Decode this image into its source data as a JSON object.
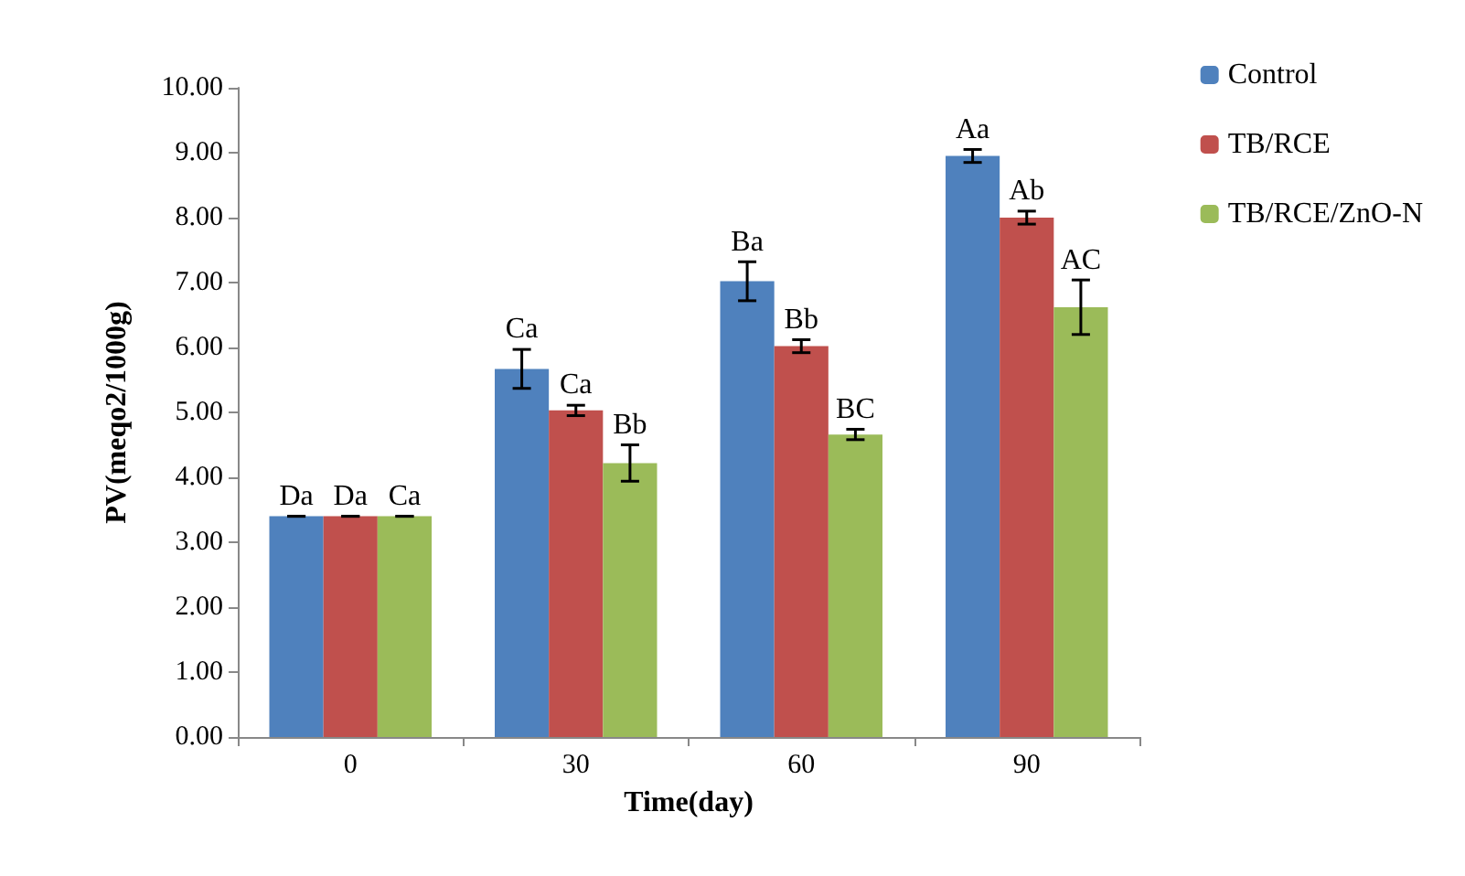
{
  "chart_data": {
    "type": "bar",
    "xlabel": "Time(day)",
    "ylabel": "PV(meqo2/1000g)",
    "categories": [
      "0",
      "30",
      "60",
      "90"
    ],
    "series": [
      {
        "name": "Control",
        "color": "#4f81bd",
        "values": [
          3.4,
          5.67,
          7.02,
          8.95
        ],
        "errors": [
          0,
          0.3,
          0.3,
          0.1
        ],
        "value_labels": [
          "Da",
          "Ca",
          "Ba",
          "Aa"
        ]
      },
      {
        "name": "TB/RCE",
        "color": "#c0504d",
        "values": [
          3.4,
          5.03,
          6.02,
          8.0
        ],
        "errors": [
          0,
          0.08,
          0.1,
          0.1
        ],
        "value_labels": [
          "Da",
          "Ca",
          "Bb",
          "Ab"
        ]
      },
      {
        "name": "TB/RCE/ZnO-N",
        "color": "#9bbb59",
        "values": [
          3.4,
          4.22,
          4.66,
          6.62
        ],
        "errors": [
          0,
          0.28,
          0.08,
          0.42
        ],
        "value_labels": [
          "Ca",
          "Bb",
          "BC",
          "AC"
        ]
      }
    ],
    "ylim": [
      0,
      10
    ],
    "yticks": [
      {
        "value": 0,
        "label": "0.00"
      },
      {
        "value": 1,
        "label": "1.00"
      },
      {
        "value": 2,
        "label": "2.00"
      },
      {
        "value": 3,
        "label": "3.00"
      },
      {
        "value": 4,
        "label": "4.00"
      },
      {
        "value": 5,
        "label": "5.00"
      },
      {
        "value": 6,
        "label": "6.00"
      },
      {
        "value": 7,
        "label": "7.00"
      },
      {
        "value": 8,
        "label": "8.00"
      },
      {
        "value": 9,
        "label": "9.00"
      },
      {
        "value": 10,
        "label": "10.00"
      }
    ],
    "grid": false,
    "legend": "right"
  }
}
